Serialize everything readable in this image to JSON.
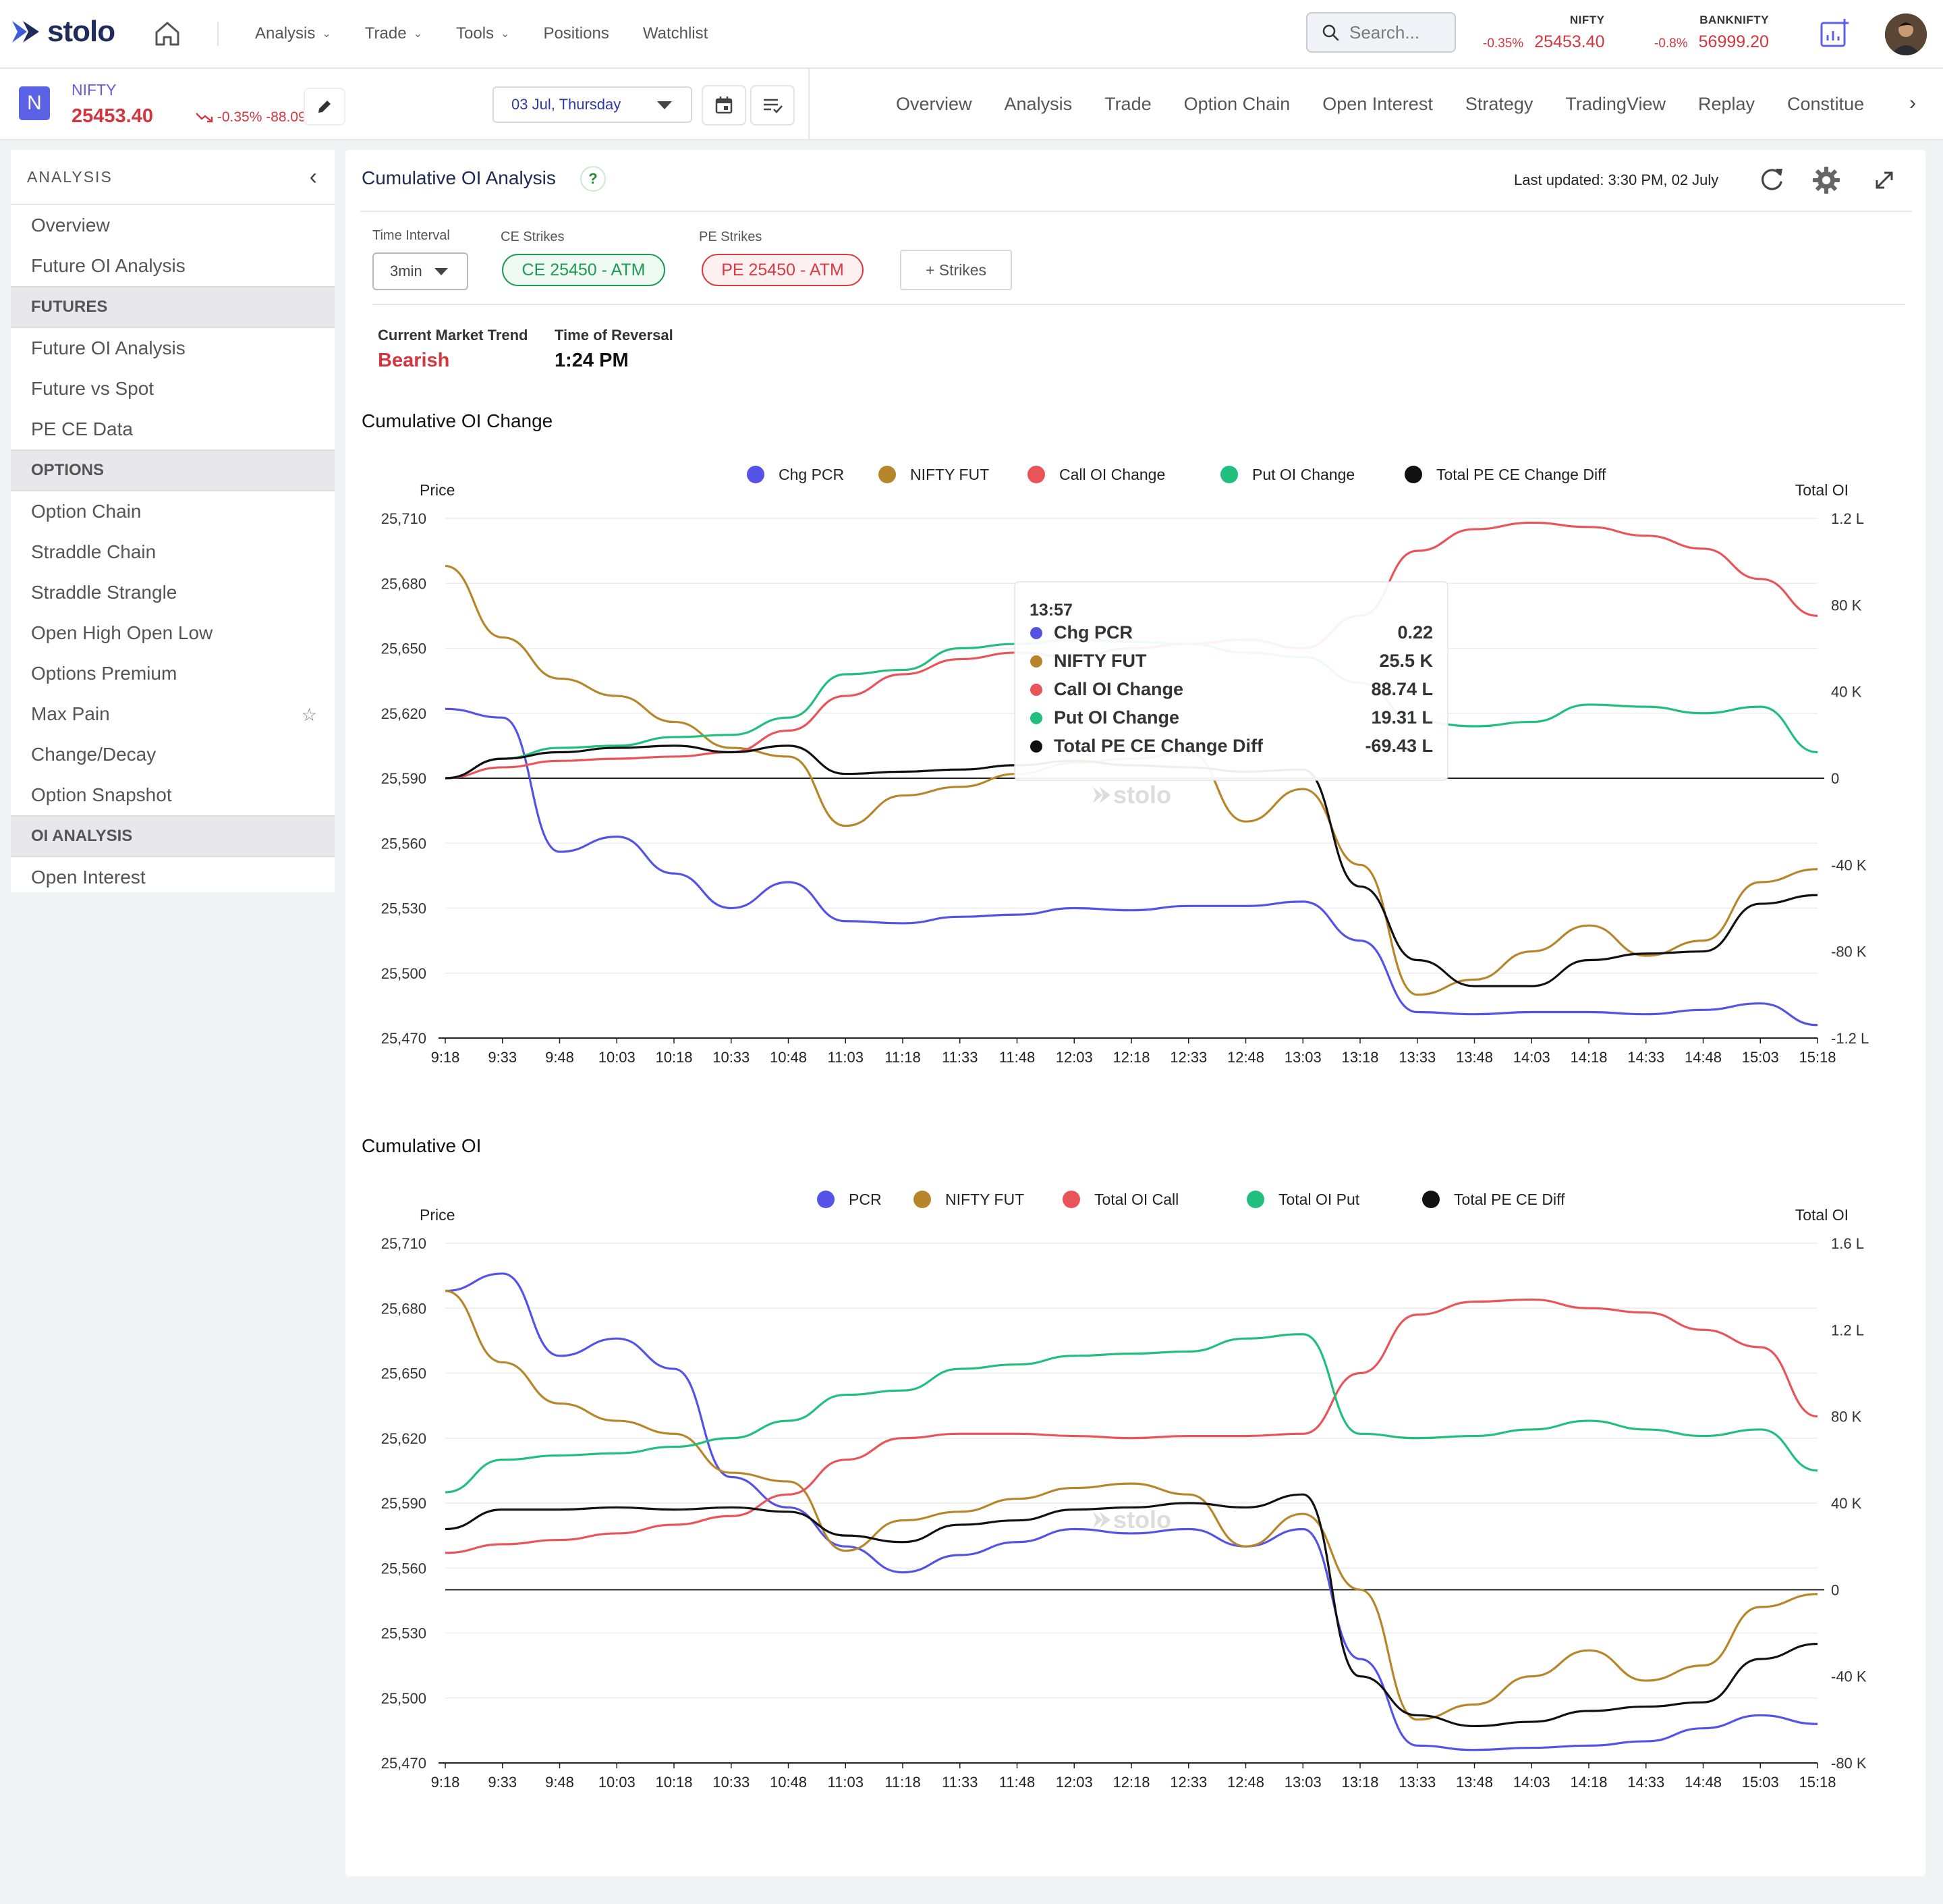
{
  "brand": {
    "name": "stolo"
  },
  "nav": {
    "items": [
      "Analysis",
      "Trade",
      "Tools",
      "Positions",
      "Watchlist"
    ]
  },
  "search": {
    "placeholder": "Search..."
  },
  "indices": [
    {
      "name": "NIFTY",
      "change_pct": "-0.35%",
      "value": "25453.40"
    },
    {
      "name": "BANKNIFTY",
      "change_pct": "-0.8%",
      "value": "56999.20"
    }
  ],
  "symbol": {
    "badge": "N",
    "name": "NIFTY",
    "price": "25453.40",
    "change": "-0.35% -88.09"
  },
  "date_select": {
    "value": "03 Jul, Thursday"
  },
  "tabs": [
    "Overview",
    "Analysis",
    "Trade",
    "Option Chain",
    "Open Interest",
    "Strategy",
    "TradingView",
    "Replay",
    "Constitue"
  ],
  "sidebar": {
    "title": "ANALYSIS",
    "entries": [
      {
        "type": "item",
        "label": "Overview"
      },
      {
        "type": "item",
        "label": "Future OI Analysis"
      },
      {
        "type": "section",
        "label": "FUTURES"
      },
      {
        "type": "item",
        "label": "Future OI Analysis"
      },
      {
        "type": "item",
        "label": "Future vs Spot"
      },
      {
        "type": "item",
        "label": "PE CE Data"
      },
      {
        "type": "section",
        "label": "OPTIONS"
      },
      {
        "type": "item",
        "label": "Option Chain"
      },
      {
        "type": "item",
        "label": "Straddle Chain"
      },
      {
        "type": "item",
        "label": "Straddle Strangle"
      },
      {
        "type": "item",
        "label": "Open High Open Low"
      },
      {
        "type": "item",
        "label": "Options Premium"
      },
      {
        "type": "item",
        "label": "Max Pain",
        "star": true
      },
      {
        "type": "item",
        "label": "Change/Decay"
      },
      {
        "type": "item",
        "label": "Option Snapshot"
      },
      {
        "type": "section",
        "label": "OI ANALYSIS"
      },
      {
        "type": "item",
        "label": "Open Interest"
      }
    ]
  },
  "main": {
    "title": "Cumulative OI Analysis",
    "help": "?",
    "last_updated": "Last updated: 3:30 PM, 02 July",
    "filters": {
      "interval_label": "Time Interval",
      "interval_value": "3min",
      "ce_label": "CE Strikes",
      "ce_value": "CE 25450 - ATM",
      "pe_label": "PE Strikes",
      "pe_value": "PE 25450 - ATM",
      "add_strikes": "+ Strikes"
    },
    "trend": {
      "trend_label": "Current Market Trend",
      "trend_value": "Bearish",
      "reversal_label": "Time of Reversal",
      "reversal_value": "1:24 PM"
    },
    "section1_title": "Cumulative OI Change",
    "section2_title": "Cumulative OI"
  },
  "colors": {
    "pcr": "#5552e8",
    "fut": "#b8862a",
    "call": "#e9545a",
    "put": "#20bf7d",
    "diff": "#111111",
    "bearish": "#d2373f"
  },
  "chart_data": [
    {
      "type": "line",
      "title": "Cumulative OI Change",
      "left_axis_title": "Price",
      "right_axis_title": "Total OI",
      "x": [
        "9:18",
        "9:33",
        "9:48",
        "10:03",
        "10:18",
        "10:33",
        "10:48",
        "11:03",
        "11:18",
        "11:33",
        "11:48",
        "12:03",
        "12:18",
        "12:33",
        "12:48",
        "13:03",
        "13:18",
        "13:33",
        "13:48",
        "14:03",
        "14:18",
        "14:33",
        "14:48",
        "15:03",
        "15:18"
      ],
      "left_ticks": [
        "25,710",
        "25,680",
        "25,650",
        "25,620",
        "25,590",
        "25,560",
        "25,530",
        "25,500",
        "25,470"
      ],
      "right_ticks": [
        "1.2 L",
        "80 K",
        "40 K",
        "0",
        "-40 K",
        "-80 K",
        "-1.2 L"
      ],
      "left_range": [
        25470,
        25710
      ],
      "right_range": [
        -120000,
        120000
      ],
      "legend": [
        "Chg PCR",
        "NIFTY FUT",
        "Call OI Change",
        "Put OI Change",
        "Total PE CE Change Diff"
      ],
      "series": [
        {
          "name": "Chg PCR",
          "axis": "left",
          "values": [
            25622,
            25618,
            25556,
            25563,
            25546,
            25530,
            25542,
            25524,
            25523,
            25526,
            25527,
            25530,
            25529,
            25531,
            25531,
            25533,
            25515,
            25482,
            25481,
            25482,
            25482,
            25481,
            25483,
            25486,
            25476
          ]
        },
        {
          "name": "NIFTY FUT",
          "axis": "left",
          "values": [
            25688,
            25655,
            25636,
            25628,
            25616,
            25604,
            25600,
            25568,
            25582,
            25586,
            25592,
            25597,
            25599,
            25602,
            25570,
            25585,
            25550,
            25490,
            25497,
            25510,
            25522,
            25508,
            25515,
            25542,
            25548
          ]
        },
        {
          "name": "Call OI Change",
          "axis": "right",
          "values": [
            0,
            5000,
            8000,
            9000,
            10000,
            12000,
            22000,
            38000,
            48000,
            55000,
            58000,
            56000,
            60000,
            62000,
            64000,
            60000,
            75000,
            105000,
            115000,
            118000,
            116000,
            112000,
            106000,
            92000,
            75000
          ]
        },
        {
          "name": "Put OI Change",
          "axis": "right",
          "values": [
            0,
            9000,
            14000,
            15000,
            19000,
            20000,
            28000,
            48000,
            50000,
            60000,
            62000,
            64000,
            63000,
            62000,
            58000,
            56000,
            44000,
            26000,
            24000,
            26000,
            34000,
            33000,
            30000,
            33000,
            12000
          ]
        },
        {
          "name": "Total PE CE Change Diff",
          "axis": "right",
          "values": [
            0,
            9000,
            12000,
            14000,
            15000,
            12000,
            15000,
            2000,
            3000,
            4000,
            6000,
            8000,
            6000,
            5000,
            3000,
            4000,
            -50000,
            -84000,
            -96000,
            -96000,
            -84000,
            -81000,
            -80000,
            -58000,
            -54000
          ]
        }
      ],
      "tooltip": {
        "time": "13:57",
        "rows": [
          {
            "name": "Chg PCR",
            "value": "0.22"
          },
          {
            "name": "NIFTY FUT",
            "value": "25.5 K"
          },
          {
            "name": "Call OI Change",
            "value": "88.74 L"
          },
          {
            "name": "Put OI Change",
            "value": "19.31 L"
          },
          {
            "name": "Total PE CE Change Diff",
            "value": "-69.43 L"
          }
        ]
      }
    },
    {
      "type": "line",
      "title": "Cumulative OI",
      "left_axis_title": "Price",
      "right_axis_title": "Total OI",
      "x": [
        "9:18",
        "9:33",
        "9:48",
        "10:03",
        "10:18",
        "10:33",
        "10:48",
        "11:03",
        "11:18",
        "11:33",
        "11:48",
        "12:03",
        "12:18",
        "12:33",
        "12:48",
        "13:03",
        "13:18",
        "13:33",
        "13:48",
        "14:03",
        "14:18",
        "14:33",
        "14:48",
        "15:03",
        "15:18"
      ],
      "left_ticks": [
        "25,710",
        "25,680",
        "25,650",
        "25,620",
        "25,590",
        "25,560",
        "25,530",
        "25,500",
        "25,470"
      ],
      "right_ticks": [
        "1.6 L",
        "1.2 L",
        "80 K",
        "40 K",
        "0",
        "-40 K",
        "-80 K"
      ],
      "left_range": [
        25470,
        25710
      ],
      "right_range": [
        -80000,
        160000
      ],
      "legend": [
        "PCR",
        "NIFTY FUT",
        "Total OI Call",
        "Total OI Put",
        "Total PE CE Diff"
      ],
      "series": [
        {
          "name": "PCR",
          "axis": "left",
          "values": [
            25688,
            25696,
            25658,
            25666,
            25652,
            25602,
            25588,
            25570,
            25558,
            25566,
            25572,
            25578,
            25576,
            25578,
            25570,
            25578,
            25518,
            25478,
            25476,
            25477,
            25478,
            25480,
            25486,
            25492,
            25488
          ]
        },
        {
          "name": "NIFTY FUT",
          "axis": "left",
          "values": [
            25688,
            25655,
            25636,
            25628,
            25622,
            25604,
            25600,
            25568,
            25582,
            25586,
            25592,
            25597,
            25599,
            25594,
            25570,
            25585,
            25550,
            25490,
            25497,
            25510,
            25522,
            25508,
            25515,
            25542,
            25548
          ]
        },
        {
          "name": "Total OI Call",
          "axis": "right",
          "values": [
            17000,
            21000,
            23000,
            26000,
            30000,
            34000,
            44000,
            60000,
            70000,
            72000,
            72000,
            71000,
            70000,
            71000,
            71000,
            72000,
            100000,
            127000,
            133000,
            134000,
            130000,
            128000,
            120000,
            112000,
            80000
          ]
        },
        {
          "name": "Total OI Put",
          "axis": "right",
          "values": [
            45000,
            60000,
            62000,
            63000,
            66000,
            70000,
            78000,
            90000,
            92000,
            102000,
            104000,
            108000,
            109000,
            110000,
            116000,
            118000,
            72000,
            70000,
            71000,
            74000,
            78000,
            74000,
            71000,
            74000,
            55000
          ]
        },
        {
          "name": "Total PE CE Diff",
          "axis": "right",
          "values": [
            28000,
            37000,
            37000,
            38000,
            37000,
            38000,
            36000,
            25000,
            22000,
            30000,
            32000,
            37000,
            38000,
            40000,
            38000,
            44000,
            -40000,
            -58000,
            -63000,
            -61000,
            -56000,
            -54000,
            -52000,
            -32000,
            -25000
          ]
        }
      ]
    }
  ]
}
